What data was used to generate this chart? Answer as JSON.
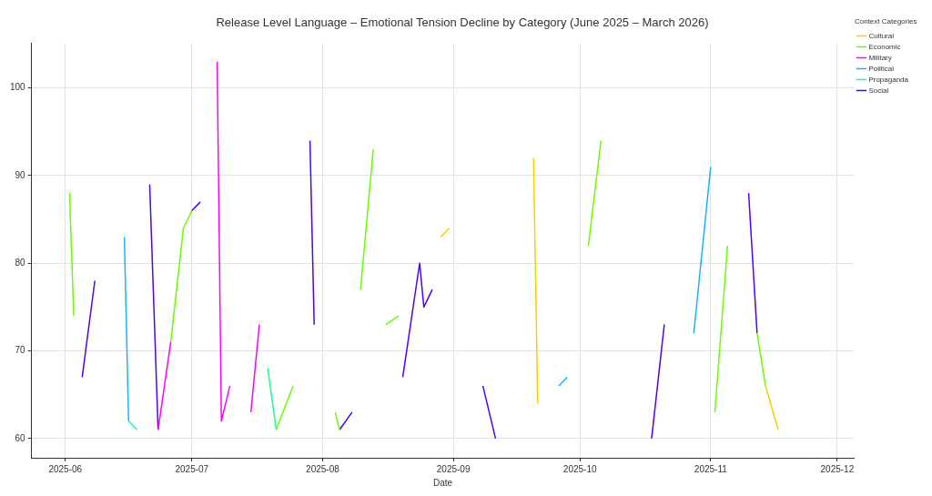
{
  "chart_data": {
    "type": "line",
    "title": "Release Level Language – Emotional Tension Decline by Category (June 2025 – March 2026)",
    "xlabel": "Date",
    "legend_title": "Context Categories",
    "legend": "top right",
    "grid": true,
    "line_style": "solid",
    "marker": "none",
    "xlim": [
      "2025-05-24",
      "2025-12-05"
    ],
    "xticks": [
      {
        "value": "2025-06-01",
        "label": "2025-06"
      },
      {
        "value": "2025-07-01",
        "label": "2025-07"
      },
      {
        "value": "2025-08-01",
        "label": "2025-08"
      },
      {
        "value": "2025-09-01",
        "label": "2025-09"
      },
      {
        "value": "2025-10-01",
        "label": "2025-10"
      },
      {
        "value": "2025-11-01",
        "label": "2025-11"
      },
      {
        "value": "2025-12-01",
        "label": "2025-12"
      }
    ],
    "ylim": [
      57.8,
      105.1
    ],
    "yticks": [
      60,
      70,
      80,
      90,
      100
    ],
    "series": [
      {
        "name": "Cultural",
        "color": "#ffcc00",
        "x": [
          "2025-08-29",
          "2025-08-31",
          null,
          "2025-09-20",
          "2025-09-21",
          null,
          "2025-11-14",
          "2025-11-17"
        ],
        "values": [
          83,
          84,
          null,
          92,
          64,
          null,
          66,
          61
        ]
      },
      {
        "name": "Economic",
        "color": "#66ff00",
        "x": [
          "2025-06-02",
          "2025-06-03",
          null,
          "2025-06-26",
          "2025-06-29",
          "2025-07-01",
          null,
          "2025-07-21",
          "2025-07-25",
          null,
          "2025-08-04",
          "2025-08-05",
          null,
          "2025-08-10",
          "2025-08-13",
          null,
          "2025-08-16",
          "2025-08-19",
          null,
          "2025-10-03",
          "2025-10-06",
          null,
          "2025-11-02",
          "2025-11-05",
          null,
          "2025-11-12",
          "2025-11-14"
        ],
        "values": [
          88,
          74,
          null,
          71,
          84,
          86,
          null,
          61,
          66,
          null,
          63,
          61,
          null,
          77,
          93,
          null,
          73,
          74,
          null,
          82,
          94,
          null,
          63,
          82,
          null,
          72,
          66
        ]
      },
      {
        "name": "Military",
        "color": "#ff00ff",
        "x": [
          "2025-06-23",
          "2025-06-26",
          null,
          "2025-07-07",
          "2025-07-08",
          "2025-07-10",
          null,
          "2025-07-15",
          "2025-07-17"
        ],
        "values": [
          61,
          71,
          null,
          103,
          62,
          66,
          null,
          63,
          73
        ]
      },
      {
        "name": "Political",
        "color": "#1ab2ff",
        "x": [
          "2025-06-15",
          "2025-06-16",
          null,
          "2025-09-26",
          "2025-09-28",
          null,
          "2025-10-28",
          "2025-11-01"
        ],
        "values": [
          83,
          62,
          null,
          66,
          67,
          null,
          72,
          91
        ]
      },
      {
        "name": "Propaganda",
        "color": "#1aff8c",
        "x": [
          "2025-06-16",
          "2025-06-18",
          null,
          "2025-07-19",
          "2025-07-21"
        ],
        "values": [
          62,
          61,
          null,
          68,
          61
        ]
      },
      {
        "name": "Social",
        "color": "#4c00ff",
        "x": [
          "2025-06-05",
          "2025-06-08",
          null,
          "2025-06-21",
          "2025-06-23",
          null,
          "2025-07-01",
          "2025-07-03",
          null,
          "2025-07-29",
          "2025-07-30",
          null,
          "2025-08-05",
          "2025-08-08",
          null,
          "2025-08-20",
          "2025-08-24",
          "2025-08-25",
          "2025-08-27",
          null,
          "2025-09-08",
          "2025-09-11",
          null,
          "2025-10-18",
          "2025-10-21",
          null,
          "2025-11-10",
          "2025-11-12"
        ],
        "values": [
          67,
          78,
          null,
          89,
          61,
          null,
          86,
          87,
          null,
          94,
          73,
          null,
          61,
          63,
          null,
          67,
          80,
          75,
          77,
          null,
          66,
          60,
          null,
          60,
          73,
          null,
          88,
          72
        ]
      }
    ]
  }
}
